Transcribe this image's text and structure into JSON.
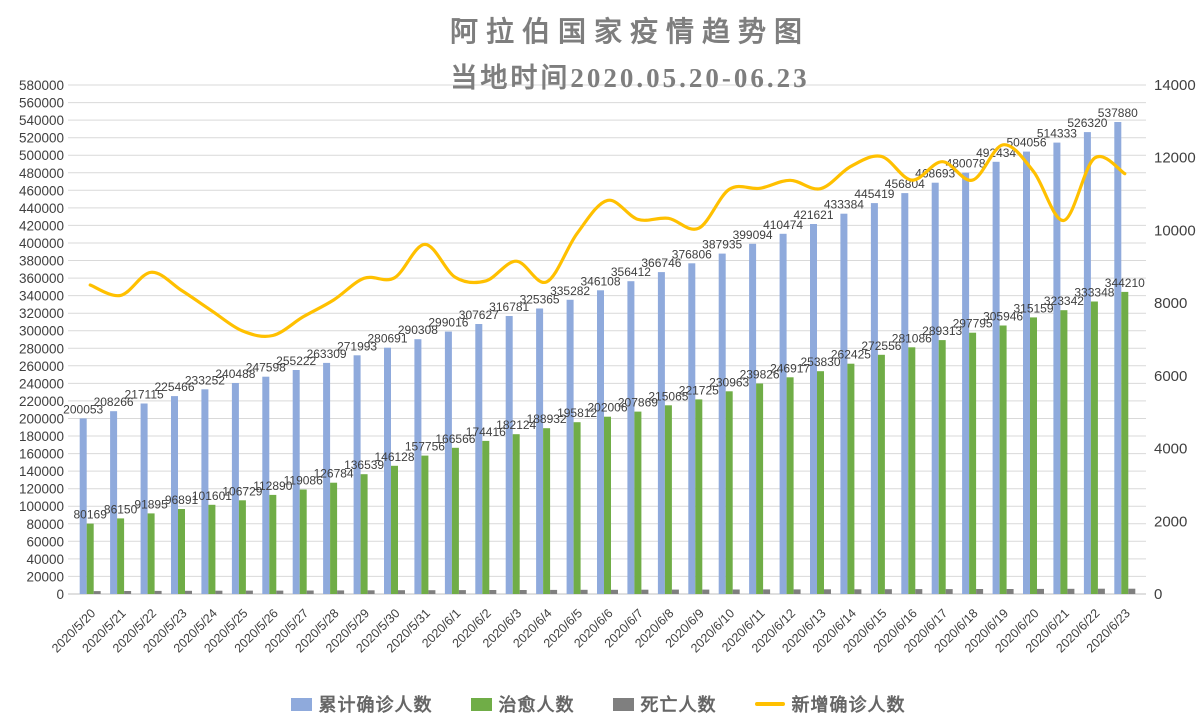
{
  "title": {
    "line1": "阿拉伯国家疫情趋势图",
    "line2": "当地时间2020.05.20-06.23"
  },
  "legend": [
    {
      "label": "累计确诊人数",
      "marker": "square",
      "color": "#8FAADC"
    },
    {
      "label": "治愈人数",
      "marker": "square",
      "color": "#70AD47"
    },
    {
      "label": "死亡人数",
      "marker": "square",
      "color": "#7F7F7F"
    },
    {
      "label": "新增确诊人数",
      "marker": "line",
      "color": "#FFC000"
    }
  ],
  "colors": {
    "cumulative_bar": "#8FAADC",
    "cured_bar": "#70AD47",
    "death_bar": "#7F7F7F",
    "new_line": "#FFC000",
    "gridline": "#D9D9D9",
    "baseline": "#BFBFBF",
    "axis_text": "#404040",
    "data_label_text": "#3F3F3F",
    "title_text": "#7E7E7E"
  },
  "chart_data": {
    "type": "bar",
    "subtype": "clustered-columns-with-secondary-axis-line",
    "title": "阿拉伯国家疫情趋势图",
    "subtitle": "当地时间2020.05.20-06.23",
    "grid": true,
    "legend_position": "bottom",
    "left_axis": {
      "min": 0,
      "max": 580000,
      "step": 20000
    },
    "right_axis": {
      "min": 0,
      "max": 14000,
      "step": 2000
    },
    "categories": [
      "2020/5/20",
      "2020/5/21",
      "2020/5/22",
      "2020/5/23",
      "2020/5/24",
      "2020/5/25",
      "2020/5/26",
      "2020/5/27",
      "2020/5/28",
      "2020/5/29",
      "2020/5/30",
      "2020/5/31",
      "2020/6/1",
      "2020/6/2",
      "2020/6/3",
      "2020/6/4",
      "2020/6/5",
      "2020/6/6",
      "2020/6/7",
      "2020/6/8",
      "2020/6/9",
      "2020/6/10",
      "2020/6/11",
      "2020/6/12",
      "2020/6/13",
      "2020/6/14",
      "2020/6/15",
      "2020/6/16",
      "2020/6/17",
      "2020/6/18",
      "2020/6/19",
      "2020/6/20",
      "2020/6/21",
      "2020/6/22",
      "2020/6/23"
    ],
    "series": [
      {
        "name": "累计确诊人数",
        "type": "bar",
        "axis": "left",
        "color": "#8FAADC",
        "labels_shown": true,
        "values": [
          200053,
          208266,
          217115,
          225466,
          233252,
          240488,
          247598,
          255222,
          263309,
          271993,
          280691,
          290308,
          299016,
          307627,
          316781,
          325365,
          335282,
          346108,
          356412,
          366746,
          376806,
          387935,
          399094,
          410474,
          421621,
          433384,
          445419,
          456804,
          468693,
          480078,
          492434,
          504056,
          514333,
          526320,
          537880
        ]
      },
      {
        "name": "治愈人数",
        "type": "bar",
        "axis": "left",
        "color": "#70AD47",
        "labels_shown": true,
        "values": [
          80169,
          86150,
          91895,
          96891,
          101601,
          106729,
          112890,
          119086,
          126784,
          136539,
          146128,
          157756,
          166566,
          174416,
          182124,
          188932,
          195812,
          202006,
          207869,
          215065,
          221725,
          230963,
          239826,
          246917,
          253830,
          262425,
          272556,
          281086,
          289313,
          297795,
          305946,
          315159,
          323342,
          333348,
          344210
        ]
      },
      {
        "name": "死亡人数",
        "type": "bar",
        "axis": "left",
        "color": "#7F7F7F",
        "labels_shown": false,
        "values_estimated": true,
        "values": [
          3310,
          3420,
          3520,
          3620,
          3720,
          3820,
          3920,
          4010,
          4100,
          4190,
          4280,
          4370,
          4450,
          4530,
          4610,
          4690,
          4770,
          4840,
          4910,
          4980,
          5050,
          5120,
          5190,
          5260,
          5330,
          5400,
          5470,
          5540,
          5610,
          5680,
          5750,
          5830,
          5910,
          5990,
          6070
        ]
      },
      {
        "name": "新增确诊人数",
        "type": "line",
        "axis": "right",
        "color": "#FFC000",
        "labels_shown": false,
        "values": [
          8500,
          8213,
          8849,
          8351,
          7786,
          7236,
          7110,
          7624,
          8087,
          8684,
          8698,
          9617,
          8708,
          8611,
          9154,
          8584,
          9917,
          10826,
          10304,
          10334,
          10060,
          11129,
          11159,
          11380,
          11147,
          11763,
          12035,
          11385,
          11889,
          11385,
          12356,
          11622,
          10277,
          11987,
          11560
        ]
      }
    ]
  }
}
